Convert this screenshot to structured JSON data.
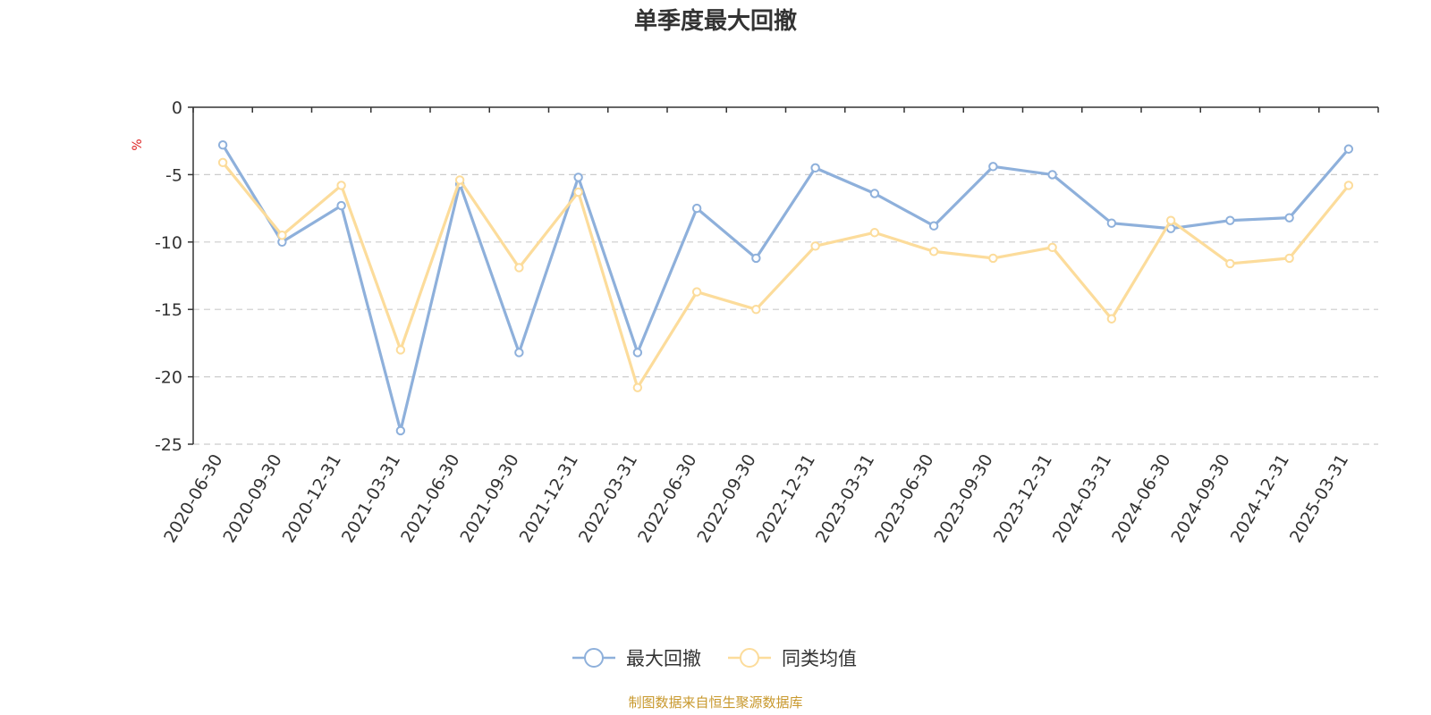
{
  "chart_data": {
    "type": "line",
    "title": "单季度最大回撤",
    "ylabel": "%",
    "xlabel": "",
    "ylim": [
      -25,
      0
    ],
    "yticks": [
      0,
      -5,
      -10,
      -15,
      -20,
      -25
    ],
    "grid": true,
    "legend_position": "bottom-center",
    "categories": [
      "2020-06-30",
      "2020-09-30",
      "2020-12-31",
      "2021-03-31",
      "2021-06-30",
      "2021-09-30",
      "2021-12-31",
      "2022-03-31",
      "2022-06-30",
      "2022-09-30",
      "2022-12-31",
      "2023-03-31",
      "2023-06-30",
      "2023-09-30",
      "2023-12-31",
      "2024-03-31",
      "2024-06-30",
      "2024-09-30",
      "2024-12-31",
      "2025-03-31"
    ],
    "series": [
      {
        "name": "最大回撤",
        "color": "#8eb0db",
        "values": [
          -2.8,
          -10.0,
          -7.3,
          -24.0,
          -5.7,
          -18.2,
          -5.2,
          -18.2,
          -7.5,
          -11.2,
          -4.5,
          -6.4,
          -8.8,
          -4.4,
          -5.0,
          -8.6,
          -9.0,
          -8.4,
          -8.2,
          -3.1
        ]
      },
      {
        "name": "同类均值",
        "color": "#fcdc9b",
        "values": [
          -4.1,
          -9.5,
          -5.8,
          -18.0,
          -5.4,
          -11.9,
          -6.3,
          -20.8,
          -13.7,
          -15.0,
          -10.3,
          -9.3,
          -10.7,
          -11.2,
          -10.4,
          -15.7,
          -8.4,
          -11.6,
          -11.2,
          -5.8
        ]
      }
    ]
  },
  "footer": {
    "text": "制图数据来自恒生聚源数据库"
  },
  "colors": {
    "unit_label": "#dd2222",
    "footer": "#c8982c",
    "axis": "#333333",
    "grid": "#cccccc"
  }
}
